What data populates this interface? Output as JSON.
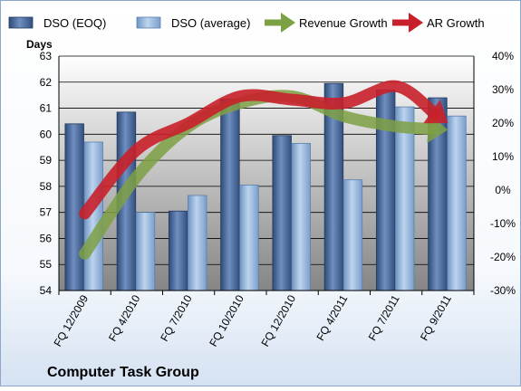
{
  "chart_data": {
    "type": "bar",
    "title": "Computer Task Group",
    "y_left_label": "Days",
    "y_left_lim": [
      54,
      63
    ],
    "y_left_ticks": [
      "54",
      "55",
      "56",
      "57",
      "58",
      "59",
      "60",
      "61",
      "62",
      "63"
    ],
    "y_right_lim": [
      -30,
      40
    ],
    "y_right_ticks": [
      "-30%",
      "-20%",
      "-10%",
      "0%",
      "10%",
      "20%",
      "30%",
      "40%"
    ],
    "categories": [
      "FQ 12/2009",
      "FQ 4/2010",
      "FQ 7/2010",
      "FQ 10/2010",
      "FQ 12/2010",
      "FQ 4/2011",
      "FQ 7/2011",
      "FQ 9/2011"
    ],
    "series": [
      {
        "name": "DSO (EOQ)",
        "type": "bar",
        "axis": "left",
        "color": "#4f6e9e",
        "values": [
          60.4,
          60.85,
          57.05,
          61.35,
          59.95,
          61.95,
          61.7,
          61.4
        ]
      },
      {
        "name": "DSO (average)",
        "type": "bar",
        "axis": "left",
        "color": "#9bbce0",
        "values": [
          59.7,
          57.0,
          57.65,
          58.05,
          59.65,
          58.25,
          61.05,
          60.7
        ]
      },
      {
        "name": "Revenue Growth",
        "type": "line",
        "axis": "right",
        "color": "#7ea044",
        "values": [
          -19,
          4,
          19,
          26,
          28,
          22,
          19,
          18
        ]
      },
      {
        "name": "AR Growth",
        "type": "line",
        "axis": "right",
        "color": "#c8202a",
        "values": [
          -7,
          12,
          20,
          28,
          27,
          26,
          31,
          20
        ]
      }
    ],
    "legend_position": "top",
    "grid": true
  }
}
